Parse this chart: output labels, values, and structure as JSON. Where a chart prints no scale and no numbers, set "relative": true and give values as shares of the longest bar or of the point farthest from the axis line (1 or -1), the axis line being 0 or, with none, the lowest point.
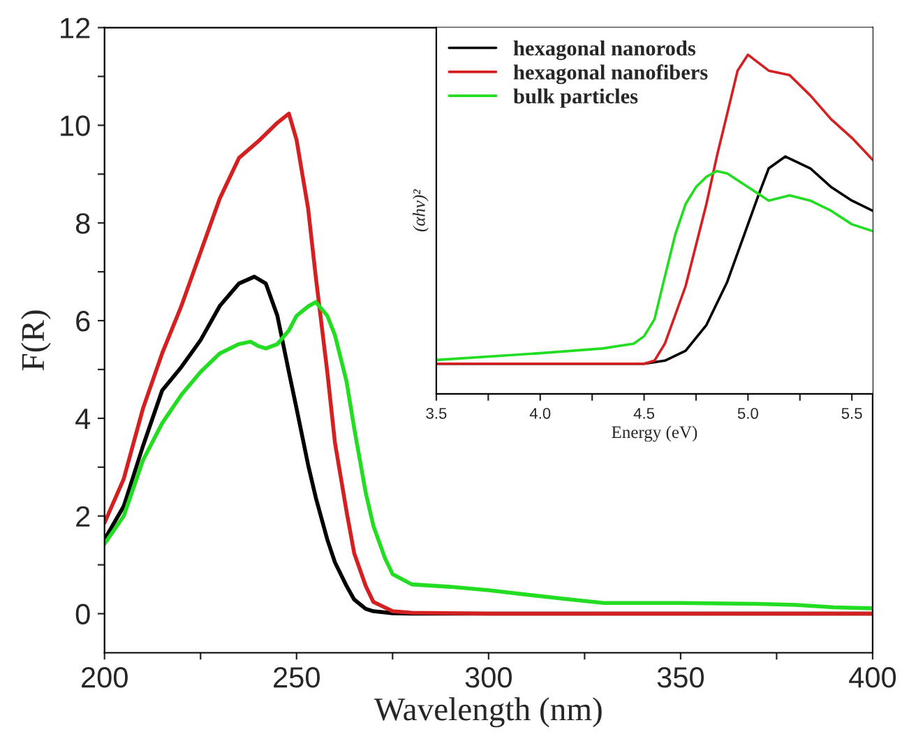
{
  "chart_data": [
    {
      "type": "line",
      "xlabel": "Wavelength (nm)",
      "ylabel": "F(R)",
      "xlim": [
        200,
        400
      ],
      "ylim": [
        -0.8,
        12
      ],
      "xticks": [
        200,
        {
          "value": 225,
          "label": null
        },
        250,
        {
          "value": 275,
          "label": null
        },
        300,
        {
          "value": 325,
          "label": null
        },
        350,
        {
          "value": 375,
          "label": null
        },
        400
      ],
      "yticks": [
        0,
        {
          "value": 1,
          "label": null
        },
        2,
        {
          "value": 3,
          "label": null
        },
        4,
        {
          "value": 5,
          "label": null
        },
        6,
        {
          "value": 7,
          "label": null
        },
        8,
        {
          "value": 9,
          "label": null
        },
        10,
        {
          "value": 11,
          "label": null
        },
        12
      ],
      "grid": false,
      "legend": false,
      "line_style": "solid",
      "marker": "none",
      "series": [
        {
          "color": "#000000",
          "x": [
            200,
            205,
            210,
            215,
            220,
            225,
            230,
            235,
            239,
            242,
            245,
            248,
            250,
            253,
            255,
            258,
            260,
            263,
            265,
            268,
            270,
            275,
            280,
            300,
            350,
            400
          ],
          "values": [
            1.52,
            2.2,
            3.43,
            4.57,
            5.05,
            5.6,
            6.3,
            6.76,
            6.9,
            6.76,
            6.1,
            4.95,
            4.2,
            3.05,
            2.38,
            1.52,
            1.05,
            0.57,
            0.29,
            0.1,
            0.05,
            0.01,
            0,
            0,
            0,
            0
          ]
        },
        {
          "color": "#d42020",
          "x": [
            200,
            205,
            210,
            215,
            220,
            225,
            230,
            235,
            240,
            245,
            248,
            250,
            253,
            255,
            258,
            260,
            263,
            265,
            268,
            270,
            275,
            280,
            300,
            350,
            400
          ],
          "values": [
            1.86,
            2.76,
            4.2,
            5.33,
            6.3,
            7.4,
            8.5,
            9.33,
            9.67,
            10.05,
            10.24,
            9.7,
            8.3,
            6.9,
            4.95,
            3.5,
            2.1,
            1.24,
            0.57,
            0.24,
            0.05,
            0.02,
            0,
            0,
            0
          ]
        },
        {
          "color": "#22dd22",
          "x": [
            200,
            205,
            210,
            215,
            220,
            225,
            230,
            235,
            238,
            240,
            242,
            245,
            248,
            250,
            253,
            255,
            258,
            260,
            263,
            265,
            268,
            270,
            273,
            275,
            280,
            290,
            300,
            320,
            330,
            350,
            370,
            380,
            390,
            400
          ],
          "values": [
            1.43,
            2.0,
            3.14,
            3.9,
            4.48,
            4.95,
            5.33,
            5.52,
            5.57,
            5.48,
            5.43,
            5.52,
            5.8,
            6.1,
            6.29,
            6.38,
            6.1,
            5.7,
            4.76,
            3.8,
            2.48,
            1.8,
            1.14,
            0.81,
            0.6,
            0.55,
            0.48,
            0.3,
            0.22,
            0.22,
            0.2,
            0.18,
            0.13,
            0.11
          ]
        }
      ]
    },
    {
      "type": "line",
      "xlabel": "Energy (eV)",
      "ylabel": "(αhν)²",
      "relative": true,
      "tick_labels": "x",
      "xlim": [
        3.5,
        5.6
      ],
      "xticks": [
        3.5,
        {
          "value": 3.75,
          "label": null
        },
        {
          "value": 4,
          "label": "4.0"
        },
        {
          "value": 4.25,
          "label": null
        },
        4.5,
        {
          "value": 4.75,
          "label": null
        },
        {
          "value": 5,
          "label": "5.0"
        },
        {
          "value": 5.25,
          "label": null
        },
        5.5
      ],
      "grid": false,
      "legend": "top left",
      "line_style": "solid",
      "marker": "none",
      "series": [
        {
          "name": "hexagonal nanorods",
          "color": "#000000",
          "x": [
            3.5,
            4.5,
            4.6,
            4.7,
            4.8,
            4.9,
            5.0,
            5.05,
            5.1,
            5.18,
            5.3,
            5.4,
            5.5,
            5.6
          ],
          "values": [
            0.089,
            0.089,
            0.098,
            0.127,
            0.203,
            0.33,
            0.5,
            0.585,
            0.665,
            0.7,
            0.665,
            0.61,
            0.57,
            0.54
          ]
        },
        {
          "name": "hexagonal nanofibers",
          "color": "#d42020",
          "x": [
            3.5,
            4.5,
            4.55,
            4.6,
            4.7,
            4.8,
            4.85,
            4.9,
            4.95,
            5.0,
            5.1,
            5.2,
            5.3,
            5.4,
            5.5,
            5.6
          ],
          "values": [
            0.089,
            0.089,
            0.098,
            0.148,
            0.318,
            0.56,
            0.7,
            0.826,
            0.953,
            1.0,
            0.953,
            0.94,
            0.88,
            0.81,
            0.755,
            0.69
          ]
        },
        {
          "name": "bulk particles",
          "color": "#22dd22",
          "x": [
            3.5,
            4.0,
            4.3,
            4.45,
            4.5,
            4.55,
            4.6,
            4.65,
            4.7,
            4.75,
            4.8,
            4.85,
            4.9,
            5.0,
            5.1,
            5.2,
            5.3,
            5.4,
            5.5,
            5.6
          ],
          "values": [
            0.1,
            0.12,
            0.134,
            0.148,
            0.17,
            0.22,
            0.346,
            0.47,
            0.56,
            0.61,
            0.64,
            0.657,
            0.65,
            0.61,
            0.57,
            0.585,
            0.57,
            0.54,
            0.5,
            0.48
          ]
        }
      ]
    }
  ]
}
